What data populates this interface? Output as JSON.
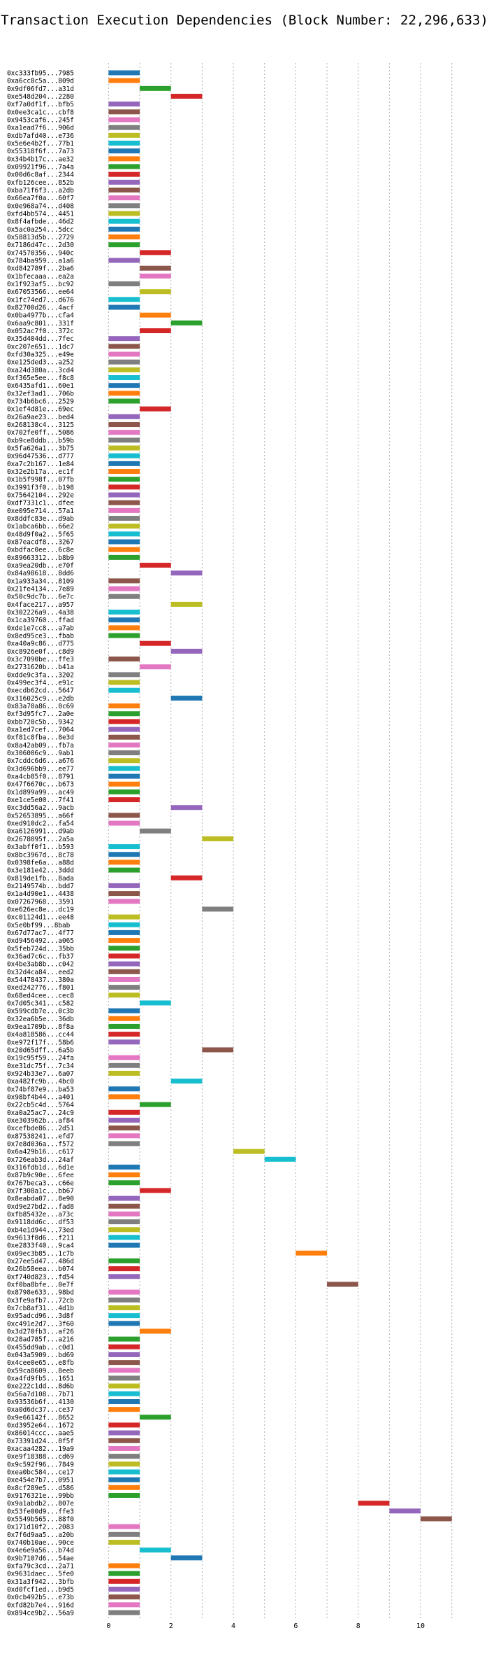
{
  "chart_data": {
    "type": "bar",
    "orientation": "horizontal",
    "title": "Transaction Execution Dependencies (Block Number: 22,296,633)",
    "xlabel": "",
    "ylabel": "",
    "xlim": [
      -0.3,
      11.7
    ],
    "xticks": [
      0,
      2,
      4,
      6,
      8,
      10
    ],
    "grid": "x-dotted",
    "palette": [
      "#1f77b4",
      "#ff7f0e",
      "#2ca02c",
      "#d62728",
      "#9467bd",
      "#8c564b",
      "#e377c2",
      "#7f7f7f",
      "#bcbd22",
      "#17becf"
    ],
    "categories": [
      "0xc333fb95...7985",
      "0xa6cc8c5a...809d",
      "0x9df06fd7...a31d",
      "0xe548d204...2280",
      "0xf7a0df1f...bfb5",
      "0x0ee3ca1c...cbf8",
      "0x9453caf6...245f",
      "0xa1ead7f6...906d",
      "0xdb7afd40...e736",
      "0x5e6e4b2f...77b1",
      "0x55318f6f...7a73",
      "0x34b4b17c...ae32",
      "0x09921f96...7a4a",
      "0x00d6c8af...2344",
      "0xfb126cee...852b",
      "0xba71f6f3...a2db",
      "0x66ea7f0a...60f7",
      "0x0e968a74...d408",
      "0xfd4bb574...4451",
      "0x8f4afbde...46d2",
      "0x5ac0a254...5dcc",
      "0x58813d5b...2729",
      "0x7186d47c...2d30",
      "0x74570356...940c",
      "0x784ba959...a1a6",
      "0xd842789f...2ba6",
      "0x1bfecaaa...ea2a",
      "0x1f923af5...bc92",
      "0x67053566...ee64",
      "0x1fc74ed7...d676",
      "0x82700d26...4acf",
      "0x0ba4977b...cfa4",
      "0x6aa9c801...331f",
      "0x052ac7f0...372c",
      "0x35d404dd...7fec",
      "0xc207e651...1dc7",
      "0xfd30a325...e49e",
      "0xe125ded3...a252",
      "0xa24d380a...3cd4",
      "0xf365e5ee...f8c8",
      "0x6435afd1...60e1",
      "0x32ef3ad1...706b",
      "0x734b6bc6...2529",
      "0x1ef4d81e...69ec",
      "0x26a9ae23...bed4",
      "0x268138c4...3125",
      "0x702fe0ff...5086",
      "0xb9ce8ddb...b59b",
      "0x5fa626a1...3b75",
      "0x96d47536...d777",
      "0xa7c2b167...1e84",
      "0x32e2b17a...ec1f",
      "0x1b5f998f...07fb",
      "0x3991f3f0...b198",
      "0x75642104...292e",
      "0xdf7331c1...dfee",
      "0xe095e714...57a1",
      "0x8ddfc83e...d9ab",
      "0x1abca6bb...66e2",
      "0x48d9f0a2...5f65",
      "0x87eacdf8...3267",
      "0xbdfac0ee...6c8e",
      "0x89663312...b8b9",
      "0xa9ea20db...e70f",
      "0x84a98618...8dd6",
      "0x1a933a34...8109",
      "0x21fe4134...7e89",
      "0x50c9dc7b...6e7c",
      "0x4face217...a957",
      "0x302226a9...4a38",
      "0x1ca39760...ffad",
      "0xde1e7cc8...a7ab",
      "0x8ed95ce3...fbab",
      "0xa40a9c86...d775",
      "0xc8926e0f...c8d9",
      "0x3c7090be...ffe3",
      "0x2731620b...b41a",
      "0xdde9c3fa...3202",
      "0x499ec3f4...e91c",
      "0xecdb62cd...5647",
      "0x316025c9...e2db",
      "0x83a70a86...0c69",
      "0xf3d95fc7...2a0e",
      "0xbb720c5b...9342",
      "0xa1ed7cef...7064",
      "0xf81c8fba...8e3d",
      "0x8a42ab09...fb7a",
      "0x306006c9...9ab1",
      "0x7cddc6d6...a676",
      "0x3d696bb9...ee77",
      "0xa4cb85f0...8791",
      "0x47f6670c...b673",
      "0x1d899a99...ac49",
      "0xe1ce5e00...7f41",
      "0xc3dd56a2...9acb",
      "0x52653895...a66f",
      "0xed910dc2...fa54",
      "0xa6126991...d9ab",
      "0x2678095f...2a5a",
      "0x3abff0f1...b593",
      "0x8bc3967d...8c78",
      "0x0398fe6a...a88d",
      "0x3e181e42...3ddd",
      "0x819de1fb...8ada",
      "0x2149574b...bdd7",
      "0x1a4d90e1...4438",
      "0x07267968...3591",
      "0xe626ec8e...dc19",
      "0xc01124d1...ee48",
      "0x5e0bf99...8bab",
      "0x67d77ac7...4f77",
      "0xd9456492...a065",
      "0x5feb724d...35bb",
      "0x36ad7c6c...fb37",
      "0x4be3ab8b...c042",
      "0x32d4ca84...eed2",
      "0x54478437...380a",
      "0xed242776...f801",
      "0x68ed4cee...cec8",
      "0x7d05c341...c582",
      "0x599cdb7e...0c3b",
      "0x32ea6b5e...36db",
      "0x9ea1709b...8f8a",
      "0x4a818586...cc44",
      "0xe972f17f...58b6",
      "0x20d65dff...6a5b",
      "0x19c95f59...24fa",
      "0xe31dc75f...7c34",
      "0x924b33e7...6a07",
      "0xa482fc9b...4bc0",
      "0x74bf87e9...ba53",
      "0x98bf4b44...a401",
      "0x22cb5c4d...5764",
      "0xa0a25ac7...24c9",
      "0xe303962b...af84",
      "0xcefbde86...2d51",
      "0x87538241...efd7",
      "0x7e8d036a...f572",
      "0x6a429b16...c617",
      "0x726eab3d...24af",
      "0x316fdb1d...6d1e",
      "0x87b9c90e...6fee",
      "0x767beca3...c66e",
      "0x7f308a1c...bb67",
      "0x8eabda07...8e90",
      "0xd9e27bd2...fad8",
      "0xfb85432e...a73c",
      "0x9118dd6c...df53",
      "0xb4e1d944...73ed",
      "0x9613f0d6...f211",
      "0xe2833f40...9ca4",
      "0x09ec3b85...1c7b",
      "0x27ee5d47...486d",
      "0x26b58eea...b074",
      "0xf740d823...fd54",
      "0xf0ba8bfe...0e7f",
      "0x8798e633...98bd",
      "0x3fe9afb7...72cb",
      "0x7cb8af31...4d1b",
      "0x95adcd96...3d8f",
      "0xc491e2d7...3f60",
      "0x3d270fb3...af26",
      "0x28ad785f...a216",
      "0x455dd9ab...c0d1",
      "0x043a5909...bd69",
      "0x4cee0e65...e8fb",
      "0x59ca8609...8eeb",
      "0xa4fd9fb5...1651",
      "0xe222c1dd...8d6b",
      "0x56a7d108...7b71",
      "0x93536b6f...4130",
      "0xa0d6dc37...ce37",
      "0x9e66142f...8652",
      "0xd3952e64...1672",
      "0x86014ccc...aae5",
      "0x73391d24...0f5f",
      "0xacaa4282...19a9",
      "0xe9f18388...cd69",
      "0x9c592f96...7849",
      "0xea0bc584...ce17",
      "0xe454e7b7...0951",
      "0x8cf289e5...d586",
      "0x9176321e...99bb",
      "0x9a1abdb2...807e",
      "0x53fe00d9...ffe3",
      "0x5549b565...88f0",
      "0x171d10f2...2083",
      "0x7f6d9aa5...a20b",
      "0x740b10ae...90ce",
      "0x4e6e9a56...b74d",
      "0x9b7107d6...54ae",
      "0xfa79c3cd...2a71",
      "0x9631daec...5fe0",
      "0x31a3f942...3bfb",
      "0xd0fcf1ed...b9d5",
      "0x0cb492b5...e73b",
      "0xfd82b7e4...916d",
      "0x894ce9b2...56a9"
    ],
    "start": [
      0,
      0,
      1,
      2,
      0,
      0,
      0,
      0,
      0,
      0,
      0,
      0,
      0,
      0,
      0,
      0,
      0,
      0,
      0,
      0,
      0,
      0,
      0,
      1,
      0,
      1,
      1,
      0,
      1,
      0,
      0,
      1,
      2,
      1,
      0,
      0,
      0,
      0,
      0,
      0,
      0,
      0,
      0,
      1,
      0,
      0,
      0,
      0,
      0,
      0,
      0,
      0,
      0,
      0,
      0,
      0,
      0,
      0,
      0,
      0,
      0,
      0,
      0,
      1,
      2,
      0,
      0,
      0,
      2,
      0,
      0,
      0,
      0,
      1,
      2,
      0,
      1,
      0,
      0,
      0,
      2,
      0,
      0,
      0,
      0,
      0,
      0,
      0,
      0,
      0,
      0,
      0,
      0,
      0,
      2,
      0,
      0,
      1,
      3,
      0,
      0,
      0,
      0,
      2,
      0,
      0,
      0,
      3,
      0,
      0,
      0,
      0,
      0,
      0,
      0,
      0,
      0,
      0,
      0,
      1,
      0,
      0,
      0,
      0,
      0,
      3,
      0,
      0,
      0,
      2,
      0,
      0,
      1,
      0,
      0,
      0,
      0,
      0,
      4,
      5,
      0,
      0,
      0,
      1,
      0,
      0,
      0,
      0,
      0,
      0,
      0,
      6,
      0,
      0,
      0,
      7,
      0,
      0,
      0,
      0,
      0,
      1,
      0,
      0,
      0,
      0,
      0,
      0,
      0,
      0,
      0,
      0,
      1,
      0,
      0,
      0,
      0,
      0,
      0,
      0,
      0,
      0,
      0,
      8,
      9,
      10,
      0,
      0,
      0,
      1,
      2,
      0,
      0,
      0,
      0,
      0,
      0,
      0
    ],
    "color_index": [
      0,
      1,
      2,
      3,
      4,
      5,
      6,
      7,
      8,
      9,
      0,
      1,
      2,
      3,
      4,
      5,
      6,
      7,
      8,
      9,
      0,
      1,
      2,
      3,
      4,
      5,
      6,
      7,
      8,
      9,
      0,
      1,
      2,
      3,
      4,
      5,
      6,
      7,
      8,
      9,
      0,
      1,
      2,
      3,
      4,
      5,
      6,
      7,
      8,
      9,
      0,
      1,
      2,
      3,
      4,
      5,
      6,
      7,
      8,
      9,
      0,
      1,
      2,
      3,
      4,
      5,
      6,
      7,
      8,
      9,
      0,
      1,
      2,
      3,
      4,
      5,
      6,
      7,
      8,
      9,
      0,
      1,
      2,
      3,
      4,
      5,
      6,
      7,
      8,
      9,
      0,
      1,
      2,
      3,
      4,
      5,
      6,
      7,
      8,
      9,
      0,
      1,
      2,
      3,
      4,
      5,
      6,
      7,
      8,
      9,
      0,
      1,
      2,
      3,
      4,
      5,
      6,
      7,
      8,
      9,
      0,
      1,
      2,
      3,
      4,
      5,
      6,
      7,
      8,
      9,
      0,
      1,
      2,
      3,
      4,
      5,
      6,
      7,
      8,
      9,
      0,
      1,
      2,
      3,
      4,
      5,
      6,
      7,
      8,
      9,
      0,
      1,
      2,
      3,
      4,
      5,
      6,
      7,
      8,
      9,
      0,
      1,
      2,
      3,
      4,
      5,
      6,
      7,
      8,
      9,
      0,
      1,
      2,
      3,
      4,
      5,
      6,
      7,
      8,
      9,
      0,
      1,
      2,
      3,
      4,
      5,
      6,
      7,
      8,
      9,
      0,
      1,
      2,
      3,
      4,
      5,
      6,
      7
    ],
    "duration": 1
  }
}
